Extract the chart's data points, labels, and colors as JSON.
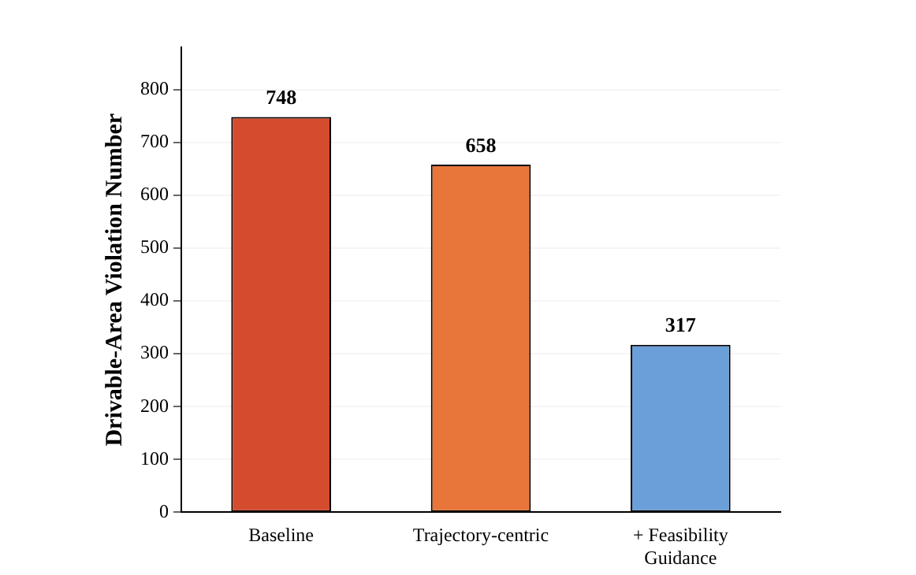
{
  "chart_data": {
    "type": "bar",
    "ylabel": "Drivable-Area Violation Number",
    "categories": [
      "Baseline",
      "Trajectory-centric",
      "+ Feasibility Guidance"
    ],
    "values": [
      748,
      658,
      317
    ],
    "colors": [
      "#d44b2e",
      "#e8763a",
      "#6b9fd9"
    ],
    "ylim": [
      0,
      880
    ],
    "yticks": [
      0,
      100,
      200,
      300,
      400,
      500,
      600,
      700,
      800
    ],
    "grid": "y",
    "legend": false,
    "data_labels": true
  }
}
